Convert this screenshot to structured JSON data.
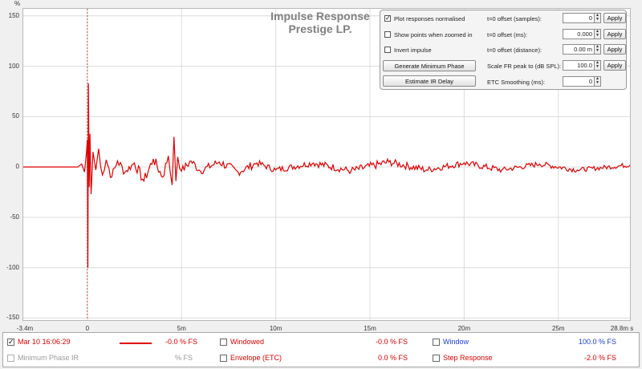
{
  "chart_data": {
    "type": "line",
    "title": [
      "Impulse Response",
      "Prestige LP."
    ],
    "y_unit": "%",
    "xlabel": "",
    "ylabel": "",
    "xlim": [
      -3.4,
      28.8
    ],
    "ylim": [
      -152,
      157
    ],
    "x_ticks": [
      {
        "value": -3.4,
        "label": "-3.4m"
      },
      {
        "value": 0,
        "label": "0"
      },
      {
        "value": 5,
        "label": "5m"
      },
      {
        "value": 10,
        "label": "10m"
      },
      {
        "value": 15,
        "label": "15m"
      },
      {
        "value": 20,
        "label": "20m"
      },
      {
        "value": 25,
        "label": "25m"
      },
      {
        "value": 28.8,
        "label": "28.8m s"
      }
    ],
    "y_ticks": [
      150,
      100,
      50,
      0,
      -50,
      -100,
      -150
    ],
    "grid": true,
    "marker_line_x": 0,
    "series": [
      {
        "name": "Mar 10 16:06:29",
        "color": "#e00000",
        "x": [
          -3.4,
          -0.5,
          -0.3,
          -0.15,
          -0.05,
          0.0,
          0.03,
          0.06,
          0.1,
          0.14,
          0.2,
          0.3,
          0.45,
          0.6,
          0.8,
          1.0,
          1.3,
          1.6,
          2.0,
          2.5,
          3.0,
          3.5,
          4.0,
          4.3,
          4.5,
          4.6,
          4.7,
          4.8,
          5.0,
          5.5,
          6.0,
          7.0,
          8.0,
          9.0,
          10.0,
          12.0,
          14.0,
          16.0,
          18.0,
          20.0,
          22.0,
          24.0,
          26.0,
          28.8
        ],
        "values": [
          0,
          0,
          3,
          -5,
          14,
          27,
          -100,
          83,
          -20,
          33,
          -27,
          15,
          -3,
          18,
          -8,
          7,
          -10,
          6,
          -5,
          4,
          -14,
          8,
          -10,
          11,
          -18,
          30,
          -14,
          10,
          -4,
          6,
          -4,
          5,
          -5,
          4,
          -3,
          4,
          -4,
          5,
          -3,
          4,
          -3,
          3,
          -3,
          2
        ]
      }
    ]
  },
  "controls": {
    "checkboxes": [
      {
        "label": "Plot responses normalised",
        "checked": true
      },
      {
        "label": "Show points when zoomed in",
        "checked": false
      },
      {
        "label": "Invert impulse",
        "checked": false
      }
    ],
    "buttons": {
      "min_phase": "Generate Minimum Phase",
      "estimate_delay": "Estimate IR Delay"
    },
    "fields": [
      {
        "label": "t=0 offset (samples):",
        "value": "0",
        "apply": "Apply"
      },
      {
        "label": "t=0 offset (ms):",
        "value": "0.000",
        "apply": "Apply"
      },
      {
        "label": "t=0 offset (distance):",
        "value": "0.00 m",
        "apply": "Apply"
      },
      {
        "label": "Scale FR peak to (dB SPL):",
        "value": "100.0",
        "apply": "Apply"
      },
      {
        "label": "ETC Smoothing (ms):",
        "value": "0",
        "apply": ""
      }
    ]
  },
  "legend": {
    "rows": [
      [
        {
          "label": "Mar 10 16:06:29",
          "value": "-0.0 % FS",
          "checked": true,
          "color": "#e00000",
          "enabled": true
        },
        {
          "label": "Windowed",
          "value": "-0.0 % FS",
          "checked": false,
          "color": "#e00000",
          "enabled": true
        },
        {
          "label": "Window",
          "value": "100.0 % FS",
          "checked": false,
          "color": "#1a3fd0",
          "enabled": true
        }
      ],
      [
        {
          "label": "Minimum Phase IR",
          "value": "% FS",
          "checked": false,
          "color": "#9a9a9a",
          "enabled": false
        },
        {
          "label": "Envelope (ETC)",
          "value": "0.0 % FS",
          "checked": false,
          "color": "#e00000",
          "enabled": true
        },
        {
          "label": "Step Response",
          "value": "-2.0 % FS",
          "checked": false,
          "color": "#e00000",
          "enabled": true
        }
      ]
    ]
  }
}
